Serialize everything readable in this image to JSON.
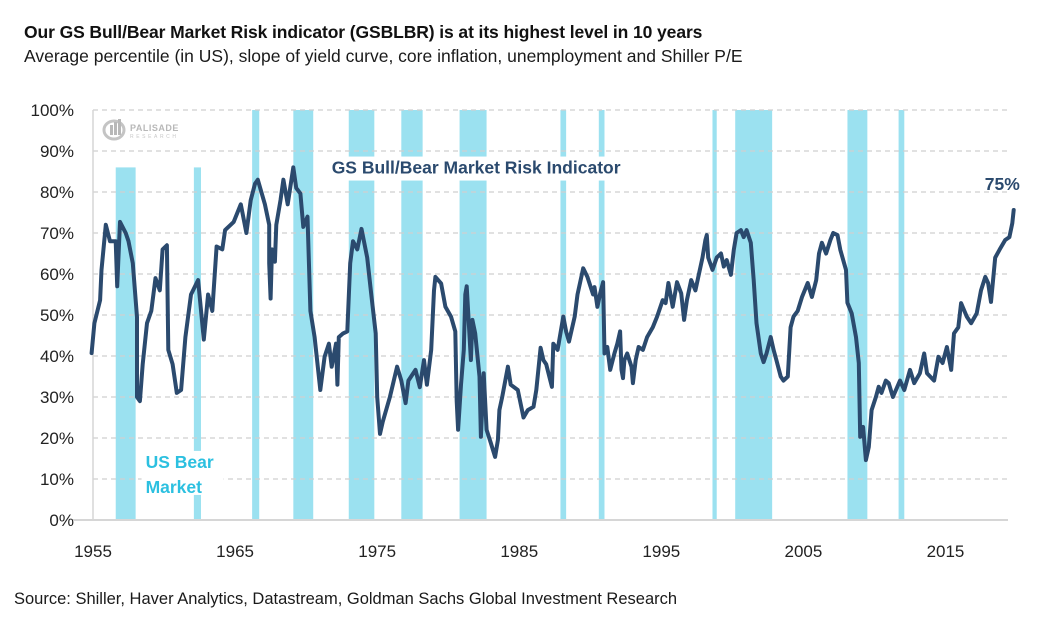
{
  "header": {
    "title": "Our GS Bull/Bear Market Risk indicator (GSBLBR) is at its highest level in 10 years",
    "subtitle": "Average percentile (in US), slope of yield curve, core inflation, unemployment and Shiller P/E"
  },
  "footer": {
    "source": "Source: Shiller, Haver Analytics, Datastream, Goldman Sachs Global Investment Research"
  },
  "watermark": {
    "name": "PALISADE",
    "sub": "RESEARCH"
  },
  "colors": {
    "line": "#2b4a6e",
    "bear_band": "#9be1f0",
    "bear_label": "#2cc0e0",
    "grid": "#cfcfcf"
  },
  "chart_data": {
    "type": "line",
    "title": "Our GS Bull/Bear Market Risk indicator (GSBLBR) is at its highest level in 10 years",
    "subtitle": "Average percentile (in US), slope of yield curve, core inflation, unemployment and Shiller P/E",
    "xlabel": "",
    "ylabel": "",
    "xlim": [
      1955,
      2019.4
    ],
    "ylim": [
      0,
      100
    ],
    "x_ticks": [
      1955,
      1965,
      1975,
      1985,
      1995,
      2005,
      2015
    ],
    "x_tick_labels": [
      "1955",
      "1965",
      "1975",
      "1985",
      "1995",
      "2005",
      "2015"
    ],
    "y_ticks": [
      0,
      10,
      20,
      30,
      40,
      50,
      60,
      70,
      80,
      90,
      100
    ],
    "y_tick_labels": [
      "0%",
      "10%",
      "20%",
      "30%",
      "40%",
      "50%",
      "60%",
      "70%",
      "80%",
      "90%",
      "100%"
    ],
    "grid": "horizontal-dashed",
    "annotations": [
      {
        "text": "GS Bull/Bear Market Risk Indicator",
        "x": 1971.8,
        "y": 84.5
      },
      {
        "text": "75%",
        "x": 2019.0,
        "y": 80.5
      },
      {
        "text": "US Bear",
        "x": 1958.7,
        "y": 12.7
      },
      {
        "text": "Market",
        "x": 1958.7,
        "y": 6.6
      }
    ],
    "bear_markets": {
      "label": "US Bear Market",
      "periods": [
        {
          "start": 1956.6,
          "end": 1958.0,
          "top": 86
        },
        {
          "start": 1962.1,
          "end": 1962.6,
          "top": 86
        },
        {
          "start": 1966.2,
          "end": 1966.7,
          "top": 100
        },
        {
          "start": 1969.1,
          "end": 1970.5,
          "top": 100
        },
        {
          "start": 1973.0,
          "end": 1974.8,
          "top": 100
        },
        {
          "start": 1976.7,
          "end": 1978.2,
          "top": 100
        },
        {
          "start": 1980.8,
          "end": 1982.7,
          "top": 100
        },
        {
          "start": 1987.9,
          "end": 1988.3,
          "top": 100
        },
        {
          "start": 1990.6,
          "end": 1991.0,
          "top": 100
        },
        {
          "start": 1998.6,
          "end": 1998.9,
          "top": 100
        },
        {
          "start": 2000.2,
          "end": 2002.8,
          "top": 100
        },
        {
          "start": 2008.1,
          "end": 2009.5,
          "top": 100
        },
        {
          "start": 2011.7,
          "end": 2012.1,
          "top": 100
        }
      ]
    },
    "series": [
      {
        "name": "GS Bull/Bear Market Risk Indicator",
        "unit": "percentile %",
        "points": [
          [
            1954.9,
            40.7
          ],
          [
            1955.1,
            48.0
          ],
          [
            1955.5,
            53.6
          ],
          [
            1955.6,
            61.0
          ],
          [
            1955.9,
            72.0
          ],
          [
            1956.2,
            68.0
          ],
          [
            1956.6,
            68.0
          ],
          [
            1956.7,
            57.0
          ],
          [
            1956.9,
            72.7
          ],
          [
            1957.3,
            70.0
          ],
          [
            1957.5,
            68.0
          ],
          [
            1957.8,
            62.6
          ],
          [
            1958.1,
            49.5
          ],
          [
            1958.1,
            30.0
          ],
          [
            1958.3,
            29.0
          ],
          [
            1958.5,
            38.0
          ],
          [
            1958.8,
            48.0
          ],
          [
            1959.1,
            51.0
          ],
          [
            1959.4,
            59.0
          ],
          [
            1959.7,
            56.0
          ],
          [
            1959.9,
            66.0
          ],
          [
            1960.2,
            67.0
          ],
          [
            1960.3,
            41.5
          ],
          [
            1960.6,
            38.0
          ],
          [
            1960.9,
            31.0
          ],
          [
            1961.2,
            31.7
          ],
          [
            1961.5,
            44.6
          ],
          [
            1961.9,
            55.0
          ],
          [
            1962.4,
            58.5
          ],
          [
            1962.8,
            44.0
          ],
          [
            1963.1,
            55.0
          ],
          [
            1963.4,
            51.0
          ],
          [
            1963.7,
            66.7
          ],
          [
            1964.1,
            66.0
          ],
          [
            1964.3,
            70.7
          ],
          [
            1964.9,
            72.7
          ],
          [
            1965.4,
            77.0
          ],
          [
            1965.8,
            70.0
          ],
          [
            1966.1,
            78.0
          ],
          [
            1966.4,
            82.0
          ],
          [
            1966.6,
            83.0
          ],
          [
            1967.1,
            77.0
          ],
          [
            1967.4,
            72.0
          ],
          [
            1967.4,
            62.6
          ],
          [
            1967.5,
            54.0
          ],
          [
            1967.6,
            66.0
          ],
          [
            1967.8,
            63.0
          ],
          [
            1967.9,
            72.0
          ],
          [
            1968.2,
            78.0
          ],
          [
            1968.4,
            83.0
          ],
          [
            1968.7,
            77.0
          ],
          [
            1969.1,
            86.0
          ],
          [
            1969.3,
            81.0
          ],
          [
            1969.6,
            79.6
          ],
          [
            1969.8,
            71.5
          ],
          [
            1970.1,
            74.0
          ],
          [
            1970.3,
            51.0
          ],
          [
            1970.6,
            44.6
          ],
          [
            1971.0,
            31.7
          ],
          [
            1971.3,
            39.8
          ],
          [
            1971.6,
            43.0
          ],
          [
            1971.8,
            37.4
          ],
          [
            1972.1,
            43.0
          ],
          [
            1972.2,
            33.0
          ],
          [
            1972.3,
            44.6
          ],
          [
            1972.6,
            45.5
          ],
          [
            1972.9,
            46.0
          ],
          [
            1973.1,
            62.6
          ],
          [
            1973.3,
            68.0
          ],
          [
            1973.6,
            66.0
          ],
          [
            1973.9,
            71.0
          ],
          [
            1974.3,
            64.0
          ],
          [
            1974.6,
            54.5
          ],
          [
            1974.9,
            45.5
          ],
          [
            1975.0,
            30.0
          ],
          [
            1975.2,
            21.0
          ],
          [
            1975.4,
            24.0
          ],
          [
            1975.9,
            30.0
          ],
          [
            1976.4,
            37.4
          ],
          [
            1976.7,
            34.0
          ],
          [
            1977.0,
            28.5
          ],
          [
            1977.2,
            34.0
          ],
          [
            1977.7,
            36.6
          ],
          [
            1978.0,
            32.4
          ],
          [
            1978.3,
            39.0
          ],
          [
            1978.5,
            33.0
          ],
          [
            1978.8,
            41.5
          ],
          [
            1979.0,
            56.0
          ],
          [
            1979.1,
            59.3
          ],
          [
            1979.5,
            57.7
          ],
          [
            1979.8,
            52.0
          ],
          [
            1980.2,
            49.6
          ],
          [
            1980.5,
            46.0
          ],
          [
            1980.6,
            29.0
          ],
          [
            1980.7,
            22.0
          ],
          [
            1980.9,
            33.0
          ],
          [
            1981.1,
            41.5
          ],
          [
            1981.2,
            55.0
          ],
          [
            1981.3,
            57.0
          ],
          [
            1981.6,
            39.0
          ],
          [
            1981.7,
            48.8
          ],
          [
            1981.9,
            45.5
          ],
          [
            1982.2,
            35.0
          ],
          [
            1982.3,
            20.3
          ],
          [
            1982.5,
            35.8
          ],
          [
            1982.7,
            22.0
          ],
          [
            1983.0,
            18.8
          ],
          [
            1983.3,
            15.4
          ],
          [
            1983.5,
            19.5
          ],
          [
            1983.6,
            26.8
          ],
          [
            1983.8,
            30.0
          ],
          [
            1984.2,
            37.4
          ],
          [
            1984.4,
            33.0
          ],
          [
            1984.9,
            31.7
          ],
          [
            1985.3,
            25.0
          ],
          [
            1985.6,
            26.8
          ],
          [
            1986.0,
            27.6
          ],
          [
            1986.2,
            31.7
          ],
          [
            1986.5,
            42.0
          ],
          [
            1986.7,
            39.0
          ],
          [
            1986.9,
            38.0
          ],
          [
            1987.3,
            32.5
          ],
          [
            1987.4,
            43.0
          ],
          [
            1987.7,
            41.5
          ],
          [
            1988.1,
            49.6
          ],
          [
            1988.3,
            46.0
          ],
          [
            1988.5,
            43.5
          ],
          [
            1988.9,
            49.6
          ],
          [
            1989.1,
            55.0
          ],
          [
            1989.5,
            61.4
          ],
          [
            1989.8,
            59.3
          ],
          [
            1990.2,
            55.0
          ],
          [
            1990.3,
            56.8
          ],
          [
            1990.5,
            52.0
          ],
          [
            1990.7,
            55.3
          ],
          [
            1990.9,
            58.0
          ],
          [
            1991.0,
            40.6
          ],
          [
            1991.2,
            42.2
          ],
          [
            1991.4,
            36.6
          ],
          [
            1991.7,
            40.6
          ],
          [
            1991.9,
            43.0
          ],
          [
            1992.1,
            46.0
          ],
          [
            1992.2,
            36.6
          ],
          [
            1992.3,
            34.6
          ],
          [
            1992.4,
            39.0
          ],
          [
            1992.6,
            40.6
          ],
          [
            1992.9,
            37.4
          ],
          [
            1993.0,
            33.4
          ],
          [
            1993.2,
            39.0
          ],
          [
            1993.4,
            42.2
          ],
          [
            1993.7,
            41.5
          ],
          [
            1994.0,
            44.6
          ],
          [
            1994.4,
            47.0
          ],
          [
            1994.7,
            49.6
          ],
          [
            1995.1,
            53.6
          ],
          [
            1995.3,
            52.9
          ],
          [
            1995.5,
            57.8
          ],
          [
            1995.8,
            52.0
          ],
          [
            1996.1,
            58.0
          ],
          [
            1996.4,
            55.3
          ],
          [
            1996.6,
            48.8
          ],
          [
            1996.8,
            53.6
          ],
          [
            1997.1,
            58.5
          ],
          [
            1997.4,
            56.0
          ],
          [
            1997.6,
            59.3
          ],
          [
            1997.9,
            64.0
          ],
          [
            1998.1,
            68.3
          ],
          [
            1998.2,
            69.5
          ],
          [
            1998.3,
            64.0
          ],
          [
            1998.6,
            61.0
          ],
          [
            1998.9,
            64.0
          ],
          [
            1999.2,
            65.0
          ],
          [
            1999.4,
            61.8
          ],
          [
            1999.6,
            63.4
          ],
          [
            1999.9,
            59.8
          ],
          [
            2000.1,
            65.9
          ],
          [
            2000.3,
            70.0
          ],
          [
            2000.6,
            70.7
          ],
          [
            2000.8,
            69.0
          ],
          [
            2001.0,
            70.7
          ],
          [
            2001.3,
            67.6
          ],
          [
            2001.5,
            58.5
          ],
          [
            2001.7,
            48.0
          ],
          [
            2002.0,
            40.6
          ],
          [
            2002.2,
            38.5
          ],
          [
            2002.4,
            40.6
          ],
          [
            2002.7,
            44.6
          ],
          [
            2002.9,
            41.5
          ],
          [
            2003.1,
            39.0
          ],
          [
            2003.4,
            35.0
          ],
          [
            2003.6,
            34.0
          ],
          [
            2003.9,
            35.0
          ],
          [
            2004.1,
            47.0
          ],
          [
            2004.3,
            49.6
          ],
          [
            2004.6,
            51.0
          ],
          [
            2004.9,
            54.4
          ],
          [
            2005.3,
            57.8
          ],
          [
            2005.6,
            54.4
          ],
          [
            2005.9,
            58.5
          ],
          [
            2006.1,
            65.0
          ],
          [
            2006.3,
            67.6
          ],
          [
            2006.6,
            65.0
          ],
          [
            2006.9,
            68.3
          ],
          [
            2007.1,
            70.0
          ],
          [
            2007.4,
            69.5
          ],
          [
            2007.6,
            65.9
          ],
          [
            2008.0,
            61.0
          ],
          [
            2008.1,
            53.0
          ],
          [
            2008.4,
            50.4
          ],
          [
            2008.7,
            44.6
          ],
          [
            2008.9,
            38.3
          ],
          [
            2009.0,
            20.3
          ],
          [
            2009.2,
            22.7
          ],
          [
            2009.4,
            14.6
          ],
          [
            2009.6,
            17.8
          ],
          [
            2009.8,
            26.8
          ],
          [
            2010.1,
            30.0
          ],
          [
            2010.3,
            32.5
          ],
          [
            2010.5,
            31.0
          ],
          [
            2010.8,
            34.0
          ],
          [
            2011.0,
            33.4
          ],
          [
            2011.3,
            30.0
          ],
          [
            2011.8,
            34.0
          ],
          [
            2012.1,
            31.7
          ],
          [
            2012.5,
            36.6
          ],
          [
            2012.8,
            33.4
          ],
          [
            2013.2,
            35.8
          ],
          [
            2013.5,
            40.6
          ],
          [
            2013.7,
            35.8
          ],
          [
            2014.2,
            34.0
          ],
          [
            2014.5,
            39.8
          ],
          [
            2014.8,
            38.3
          ],
          [
            2015.1,
            42.2
          ],
          [
            2015.4,
            36.6
          ],
          [
            2015.6,
            45.5
          ],
          [
            2015.9,
            47.0
          ],
          [
            2016.1,
            52.9
          ],
          [
            2016.5,
            49.6
          ],
          [
            2016.8,
            48.0
          ],
          [
            2017.2,
            50.4
          ],
          [
            2017.5,
            56.0
          ],
          [
            2017.8,
            59.3
          ],
          [
            2018.0,
            57.8
          ],
          [
            2018.2,
            53.2
          ],
          [
            2018.5,
            64.0
          ],
          [
            2018.8,
            65.9
          ],
          [
            2019.2,
            68.3
          ],
          [
            2019.5,
            69.0
          ],
          [
            2019.7,
            72.4
          ],
          [
            2019.8,
            75.6
          ]
        ]
      }
    ]
  }
}
